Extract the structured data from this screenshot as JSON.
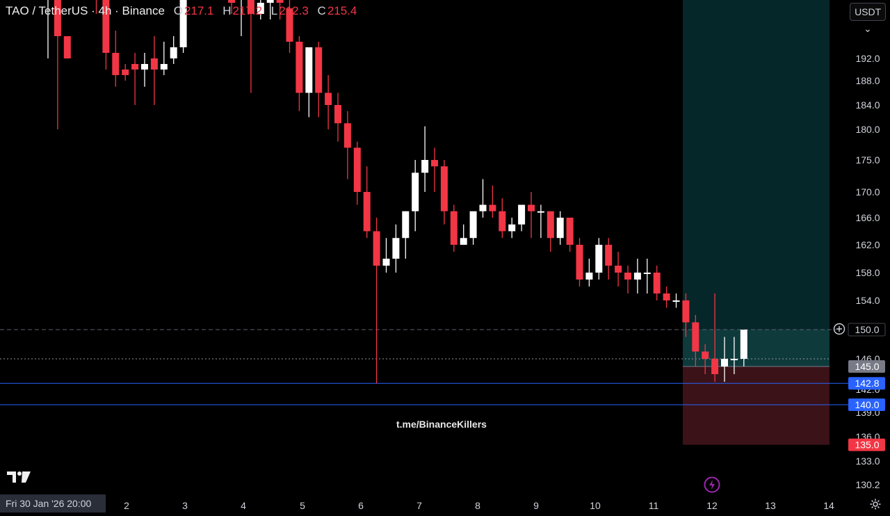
{
  "header": {
    "symbol": "TAO / TetherUS · 4h · Binance",
    "o_label": "O",
    "o_value": "217.1",
    "h_label": "H",
    "h_value": "217.2",
    "l_label": "L",
    "l_value": "212.3",
    "c_label": "C",
    "c_value": "215.4"
  },
  "currency_selector": "USDT",
  "watermark": "t.me/BinanceKillers",
  "crosshair_date": "Fri 30 Jan '26   20:00",
  "colors": {
    "up": "#ffffff",
    "down": "#f23645",
    "target_zone": "#0e3a3c",
    "stop_zone": "#3a1218",
    "blue_line": "#2962ff",
    "label_blue": "#2962ff",
    "label_red": "#f23645",
    "label_gray": "#787b86"
  },
  "icons": {
    "logo": "tradingview-logo-icon",
    "settings": "gear-icon",
    "alert": "lightning-icon",
    "add": "plus-circle-icon"
  },
  "chart_data": {
    "type": "candlestick",
    "price_axis_ticks": [
      192.0,
      188.0,
      184.0,
      180.0,
      175.0,
      170.0,
      166.0,
      162.0,
      158.0,
      154.0,
      146.0,
      142.0,
      139.0,
      136.0,
      133.0,
      130.2
    ],
    "date_axis_ticks": [
      "2",
      "3",
      "4",
      "5",
      "6",
      "7",
      "8",
      "9",
      "10",
      "11",
      "12",
      "13",
      "14"
    ],
    "price_labels": [
      {
        "value": "150.0",
        "price": 150.0,
        "style": "current"
      },
      {
        "value": "145.0",
        "price": 145.0,
        "style": "gray"
      },
      {
        "value": "142.8",
        "price": 142.8,
        "style": "blue"
      },
      {
        "value": "140.0",
        "price": 140.0,
        "style": "blue"
      },
      {
        "value": "135.0",
        "price": 135.0,
        "style": "red"
      }
    ],
    "position": {
      "entry": 145.0,
      "target": 200.0,
      "stop": 135.0
    },
    "horizontal_lines": [
      142.8,
      140.0
    ],
    "dashed_line": 150.0,
    "dotted_line": 146.0,
    "candles": [
      [
        210.0,
        219.0,
        211.0,
        192.0
      ],
      [
        212.0,
        215.0,
        196.0,
        180.0
      ],
      [
        196.0,
        214.0,
        192.0,
        215.0
      ],
      [
        214.0,
        216.0,
        210.0,
        209.0
      ],
      [
        210.0,
        214.0,
        206.0,
        205.0
      ],
      [
        206.0,
        207.0,
        203.0,
        200.0
      ],
      [
        203.0,
        204.0,
        193.0,
        190.0
      ],
      [
        193.0,
        197.0,
        189.0,
        187.0
      ],
      [
        190.0,
        191.0,
        189.0,
        188.0
      ],
      [
        191.0,
        193.0,
        190.0,
        184.0
      ],
      [
        190.0,
        193.0,
        191.0,
        187.0
      ],
      [
        192.0,
        196.0,
        190.0,
        184.0
      ],
      [
        190.0,
        195.0,
        191.0,
        189.0
      ],
      [
        192.0,
        196.0,
        194.0,
        191.0
      ],
      [
        194.0,
        219.0,
        218.0,
        193.0
      ],
      [
        217.0,
        222.0,
        216.0,
        211.0
      ],
      [
        212.0,
        215.0,
        209.0,
        207.0
      ],
      [
        209.0,
        212.0,
        207.0,
        203.0
      ],
      [
        207.0,
        213.0,
        205.0,
        203.0
      ],
      [
        205.0,
        213.0,
        202.0,
        200.0
      ],
      [
        203.0,
        208.0,
        206.0,
        196.0
      ],
      [
        206.0,
        209.0,
        200.0,
        186.0
      ],
      [
        200.0,
        209.0,
        202.0,
        199.0
      ],
      [
        202.0,
        210.0,
        206.0,
        199.0
      ],
      [
        206.0,
        208.0,
        202.0,
        199.0
      ],
      [
        201.0,
        203.0,
        195.0,
        193.0
      ],
      [
        195.0,
        196.0,
        186.0,
        183.0
      ],
      [
        186.0,
        194.0,
        194.0,
        182.0
      ],
      [
        194.0,
        195.0,
        186.0,
        182.0
      ],
      [
        186.0,
        189.0,
        184.0,
        180.0
      ],
      [
        184.0,
        186.0,
        181.0,
        178.0
      ],
      [
        181.0,
        183.0,
        177.0,
        172.0
      ],
      [
        177.0,
        178.0,
        170.0,
        168.0
      ],
      [
        170.0,
        174.0,
        164.0,
        163.0
      ],
      [
        164.0,
        166.0,
        159.0,
        142.8
      ],
      [
        159.0,
        163.0,
        160.0,
        158.0
      ],
      [
        160.0,
        165.0,
        163.0,
        158.0
      ],
      [
        163.0,
        167.0,
        167.0,
        160.0
      ],
      [
        167.0,
        175.0,
        173.0,
        164.0
      ],
      [
        173.0,
        180.5,
        175.0,
        170.0
      ],
      [
        175.0,
        177.0,
        174.0,
        170.0
      ],
      [
        174.0,
        175.0,
        167.0,
        165.0
      ],
      [
        167.0,
        168.0,
        162.0,
        161.0
      ],
      [
        162.0,
        165.0,
        163.0,
        162.0
      ],
      [
        163.0,
        166.0,
        167.0,
        162.0
      ],
      [
        167.0,
        172.0,
        168.0,
        166.0
      ],
      [
        168.0,
        171.0,
        167.0,
        166.0
      ],
      [
        167.0,
        169.0,
        164.0,
        163.0
      ],
      [
        164.0,
        166.0,
        165.0,
        163.0
      ],
      [
        165.0,
        166.0,
        168.0,
        164.0
      ],
      [
        168.0,
        170.0,
        167.0,
        163.0
      ],
      [
        167.0,
        168.0,
        167.0,
        163.0
      ],
      [
        167.0,
        167.0,
        163.0,
        161.0
      ],
      [
        163.0,
        167.0,
        166.0,
        162.0
      ],
      [
        166.0,
        166.0,
        162.0,
        161.0
      ],
      [
        162.0,
        163.0,
        157.0,
        156.0
      ],
      [
        157.0,
        160.0,
        158.0,
        156.0
      ],
      [
        158.0,
        163.0,
        162.0,
        157.0
      ],
      [
        162.0,
        163.0,
        159.0,
        157.0
      ],
      [
        159.0,
        161.0,
        158.0,
        156.0
      ],
      [
        158.0,
        159.0,
        157.0,
        155.0
      ],
      [
        157.0,
        160.0,
        158.0,
        155.0
      ],
      [
        158.0,
        160.0,
        158.0,
        155.0
      ],
      [
        158.0,
        159.0,
        155.0,
        154.0
      ],
      [
        155.0,
        156.0,
        154.0,
        153.0
      ],
      [
        154.0,
        155.0,
        154.0,
        153.0
      ],
      [
        154.0,
        155.0,
        151.0,
        149.0
      ],
      [
        151.0,
        152.0,
        147.0,
        145.0
      ],
      [
        147.0,
        148.0,
        146.0,
        144.0
      ],
      [
        146.0,
        155.0,
        144.0,
        143.0
      ],
      [
        145.0,
        149.0,
        146.0,
        143.0
      ],
      [
        146.0,
        149.0,
        146.0,
        144.0
      ],
      [
        146.0,
        149.0,
        150.0,
        145.0
      ]
    ]
  }
}
